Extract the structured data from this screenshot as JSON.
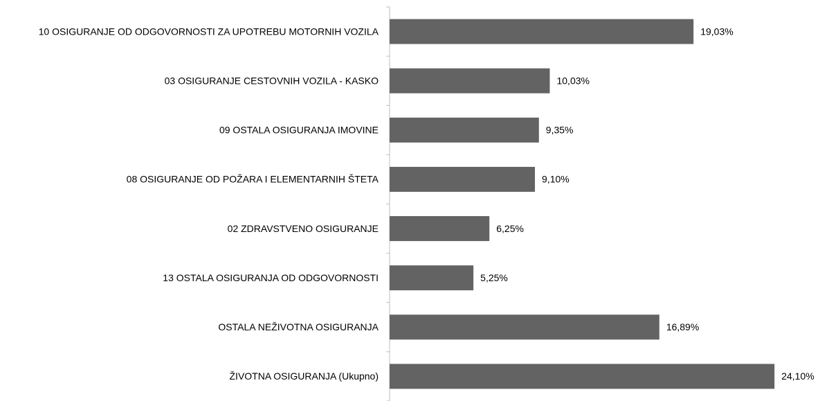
{
  "chart_data": {
    "type": "bar",
    "orientation": "horizontal",
    "categories": [
      "10 OSIGURANJE OD ODGOVORNOSTI ZA UPOTREBU MOTORNIH VOZILA",
      "03 OSIGURANJE CESTOVNIH VOZILA - KASKO",
      "09 OSTALA OSIGURANJA IMOVINE",
      "08 OSIGURANJE OD POŽARA I ELEMENTARNIH ŠTETA",
      "02 ZDRAVSTVENO OSIGURANJE",
      "13 OSTALA OSIGURANJA OD ODGOVORNOSTI",
      "OSTALA NEŽIVOTNA OSIGURANJA",
      "ŽIVOTNA OSIGURANJA (Ukupno)"
    ],
    "values": [
      19.03,
      10.03,
      9.35,
      9.1,
      6.25,
      5.25,
      16.89,
      24.1
    ],
    "value_labels": [
      "19,03%",
      "10,03%",
      "9,35%",
      "9,10%",
      "6,25%",
      "5,25%",
      "16,89%",
      "24,10%"
    ],
    "color": "#636363",
    "xlim": [
      0,
      25
    ]
  }
}
